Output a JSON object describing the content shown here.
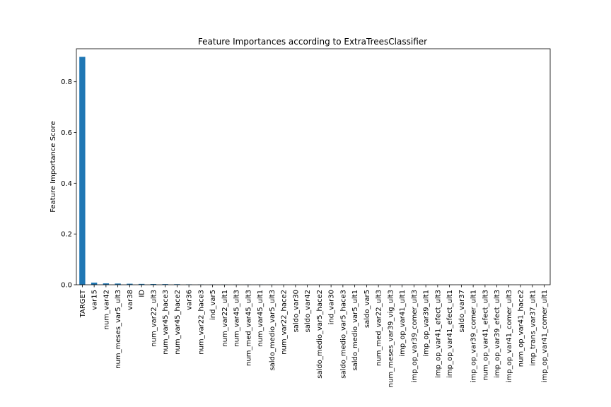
{
  "chart_data": {
    "type": "bar",
    "title": "Feature Importances according to ExtraTreesClassifier",
    "xlabel": "",
    "ylabel": "Feature Importance Score",
    "ylim": [
      0,
      0.93
    ],
    "yticks": [
      "0.0",
      "0.2",
      "0.4",
      "0.6",
      "0.8"
    ],
    "ytick_values": [
      0,
      0.2,
      0.4,
      0.6,
      0.8
    ],
    "bar_color": "#1f77b4",
    "grid": false,
    "categories": [
      "TARGET",
      "var15",
      "num_var42",
      "num_meses_var5_ult3",
      "var38",
      "ID",
      "num_var22_ult3",
      "num_var45_hace3",
      "num_var45_hace2",
      "var36",
      "num_var22_hace3",
      "ind_var5",
      "num_var22_ult1",
      "num_var45_ult3",
      "num_med_var45_ult3",
      "num_var45_ult1",
      "saldo_medio_var5_ult3",
      "num_var22_hace2",
      "saldo_var30",
      "saldo_var42",
      "saldo_medio_var5_hace2",
      "ind_var30",
      "saldo_medio_var5_hace3",
      "saldo_medio_var5_ult1",
      "saldo_var5",
      "num_med_var22_ult3",
      "num_meses_var39_vig_ult3",
      "imp_op_var41_ult1",
      "imp_op_var39_comer_ult3",
      "imp_op_var39_ult1",
      "imp_op_var41_efect_ult3",
      "imp_op_var41_efect_ult1",
      "saldo_var37",
      "imp_op_var39_comer_ult1",
      "num_op_var41_efect_ult3",
      "imp_op_var39_efect_ult3",
      "imp_op_var41_comer_ult3",
      "num_op_var41_hace2",
      "imp_trans_var37_ult1",
      "imp_op_var41_comer_ult1"
    ],
    "values": [
      0.898,
      0.0085,
      0.0055,
      0.0048,
      0.004,
      0.0032,
      0.0028,
      0.0025,
      0.0022,
      0.0015,
      0.0012,
      0.001,
      0.0009,
      0.0008,
      0.0007,
      0.0007,
      0.0006,
      0.0006,
      0.0005,
      0.0005,
      0.0005,
      0.0004,
      0.0004,
      0.0004,
      0.0004,
      0.0003,
      0.0003,
      0.0003,
      0.0003,
      0.0003,
      0.0002,
      0.0002,
      0.0002,
      0.0002,
      0.0002,
      0.0002,
      0.0002,
      0.0001,
      0.0001,
      0.0001
    ]
  }
}
